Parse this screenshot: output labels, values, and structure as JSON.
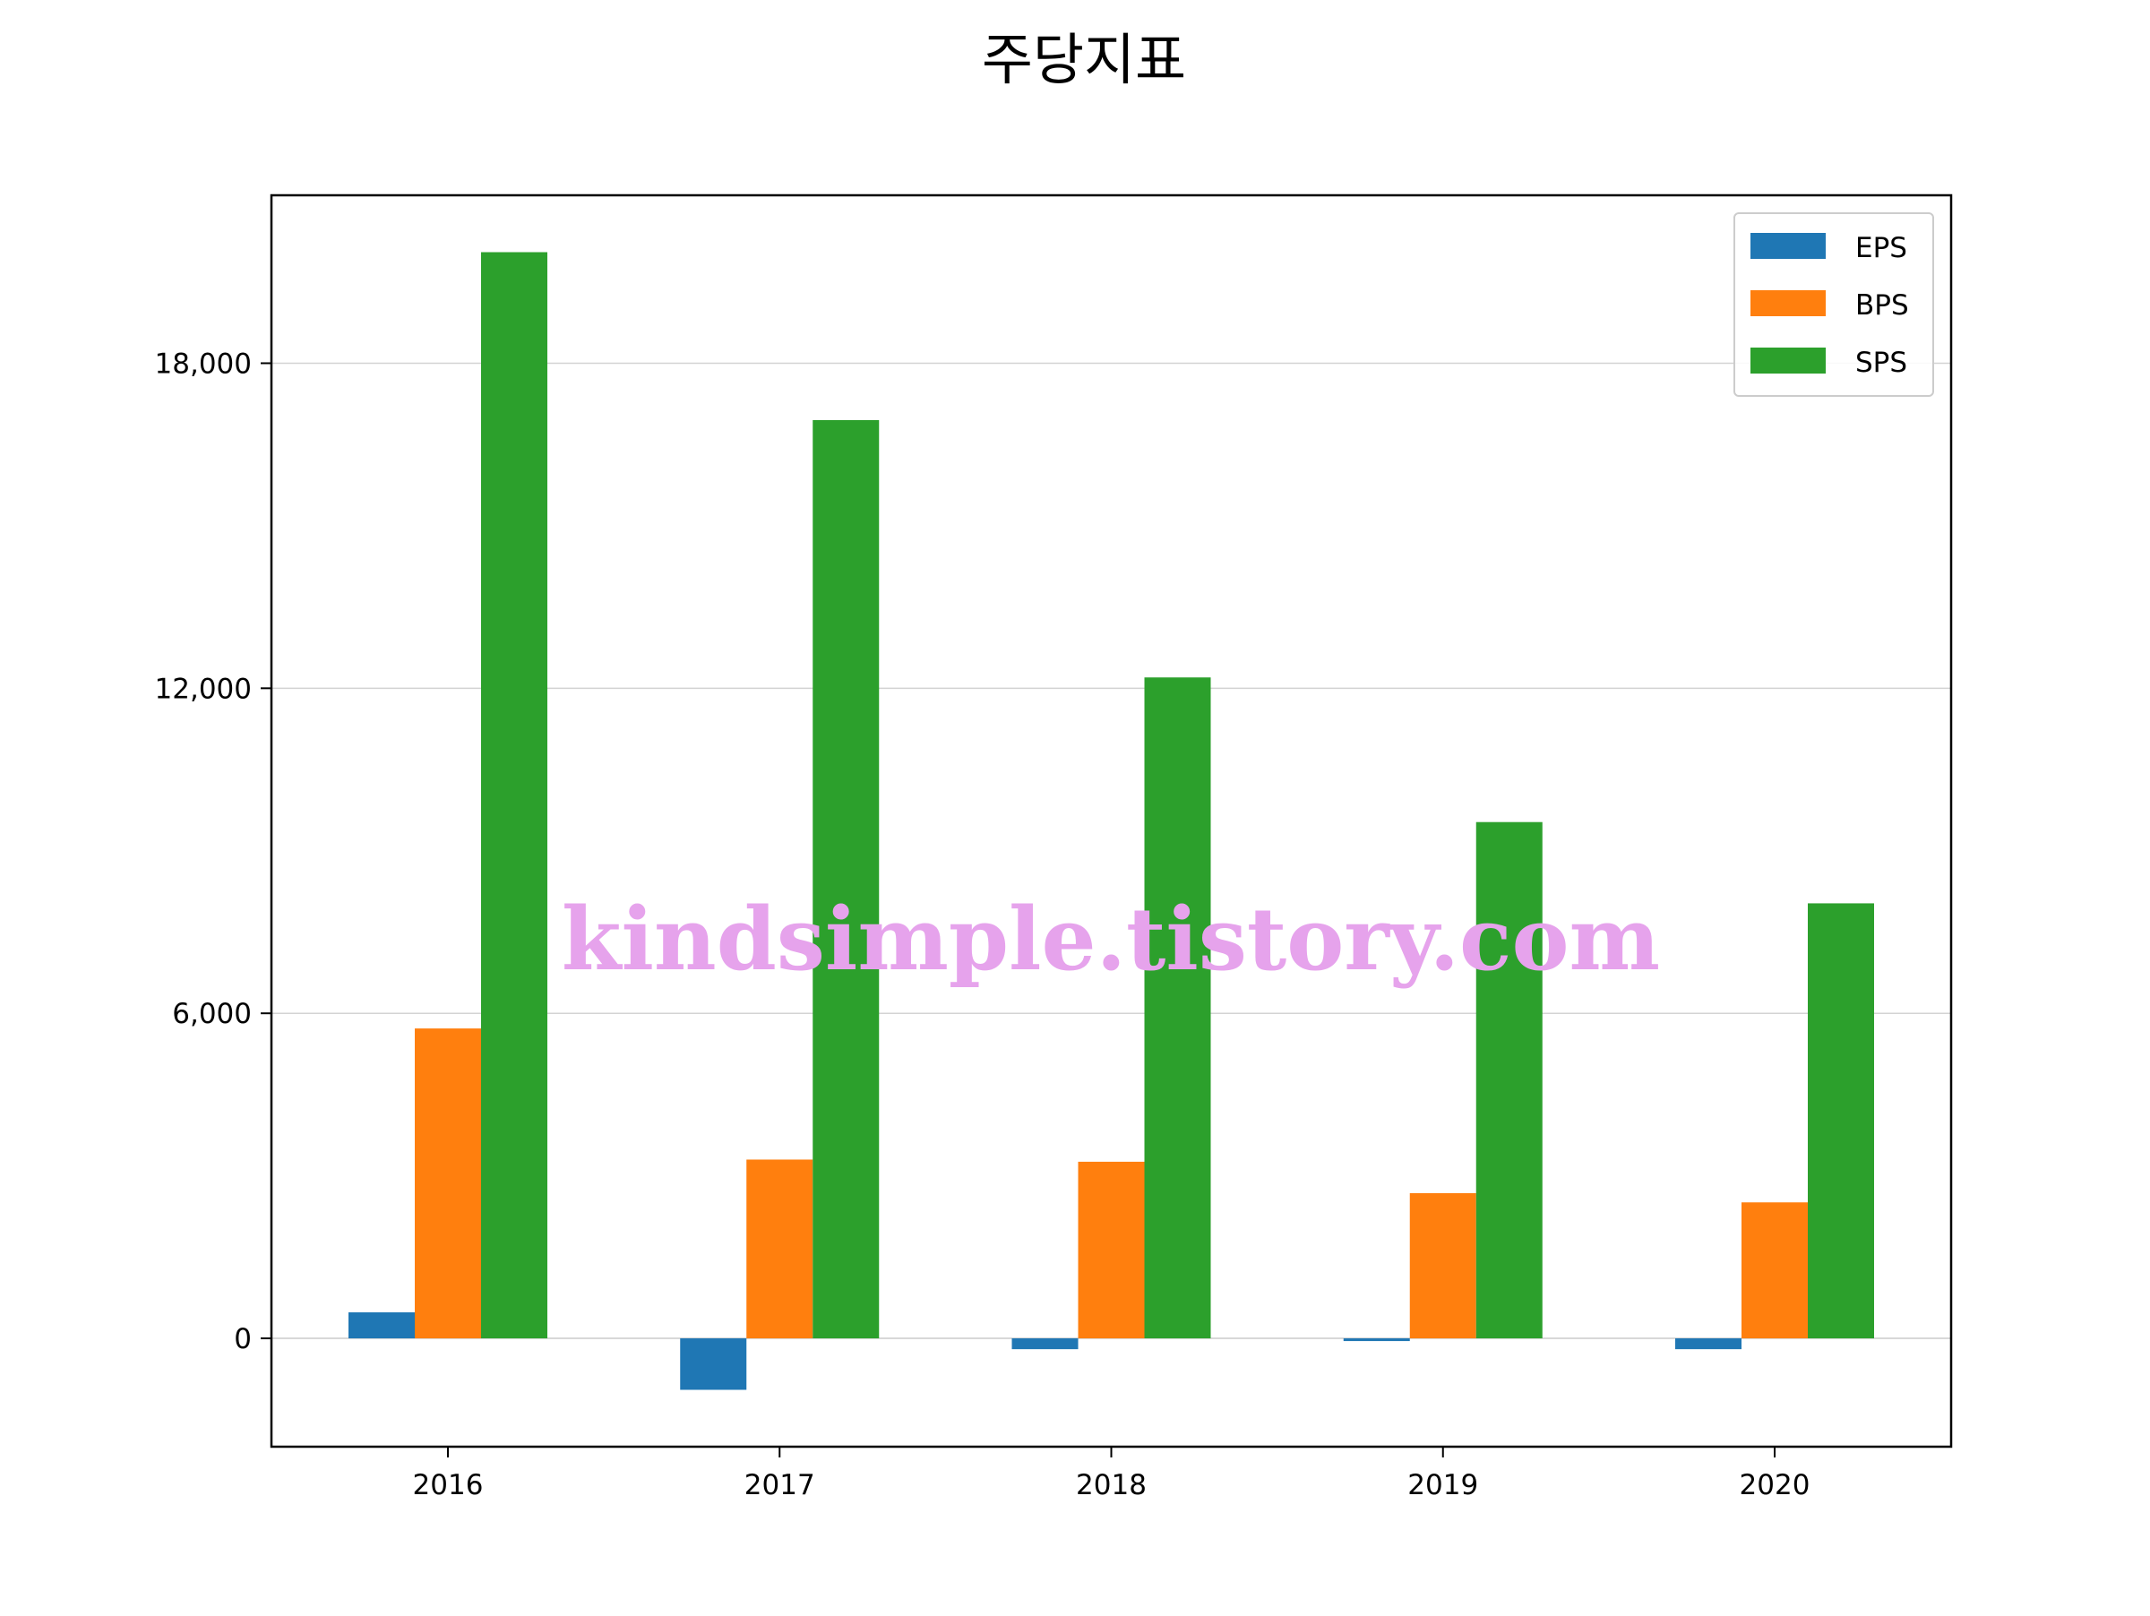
{
  "chart_data": {
    "type": "bar",
    "title": "주당지표",
    "xlabel": "",
    "ylabel": "",
    "categories": [
      "2016",
      "2017",
      "2018",
      "2019",
      "2020"
    ],
    "series": [
      {
        "name": "EPS",
        "color": "#1f77b4",
        "values": [
          480,
          -950,
          -200,
          -50,
          -200
        ]
      },
      {
        "name": "BPS",
        "color": "#ff7f0e",
        "values": [
          5720,
          3300,
          3260,
          2680,
          2510
        ]
      },
      {
        "name": "SPS",
        "color": "#2ca02c",
        "values": [
          20050,
          16950,
          12200,
          9530,
          8030
        ]
      }
    ],
    "ylim": [
      -2000,
      21100
    ],
    "yticks": [
      0,
      6000,
      12000,
      18000
    ],
    "ytick_labels": [
      "0",
      "6,000",
      "12,000",
      "18,000"
    ],
    "grid": "y",
    "legend_position": "top-right"
  },
  "watermark": "kindsimple.tistory.com"
}
